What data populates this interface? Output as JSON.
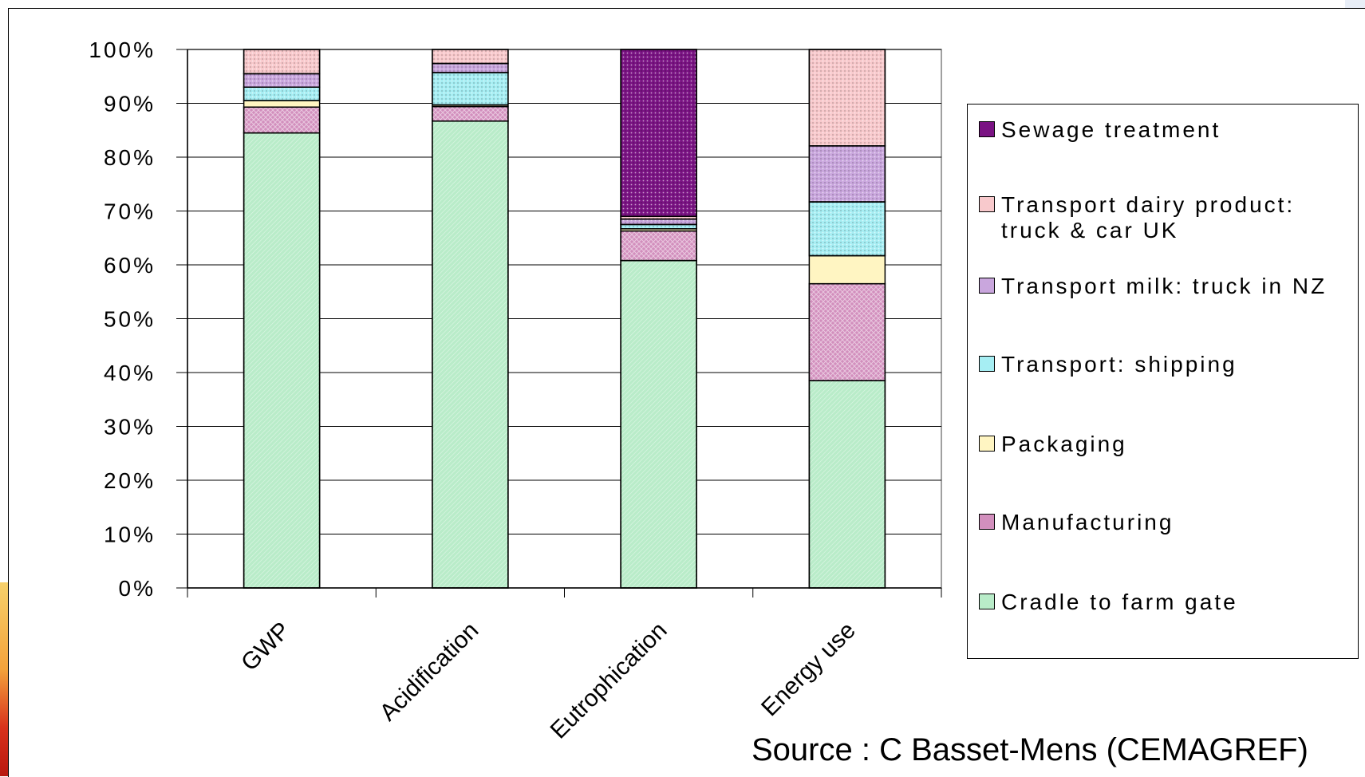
{
  "chart_data": {
    "type": "bar",
    "stacked": true,
    "percent": true,
    "categories": [
      "GWP",
      "Acidification",
      "Eutrophication",
      "Energy use"
    ],
    "series": [
      {
        "name": "Cradle to farm gate",
        "values": [
          84.5,
          86.7,
          60.8,
          38.5
        ],
        "color": "#b9ecc9"
      },
      {
        "name": "Manufacturing",
        "values": [
          4.8,
          2.7,
          5.5,
          18.0
        ],
        "color": "#d28fbd"
      },
      {
        "name": "Packaging",
        "values": [
          1.2,
          0.3,
          0.4,
          5.2
        ],
        "color": "#fff5c2"
      },
      {
        "name": "Transport: shipping",
        "values": [
          2.5,
          6.0,
          0.8,
          10.0
        ],
        "color": "#a6eef3"
      },
      {
        "name": "Transport milk: truck in NZ",
        "values": [
          2.5,
          1.7,
          1.0,
          10.4
        ],
        "color": "#c9a6dd"
      },
      {
        "name": "Transport dairy product:\ntruck & car UK",
        "values": [
          4.5,
          2.6,
          0.5,
          17.9
        ],
        "color": "#f8c9cc"
      },
      {
        "name": "Sewage treatment",
        "values": [
          0,
          0,
          31.0,
          0
        ],
        "color": "#7a1383"
      }
    ],
    "yticks": [
      "0%",
      "10%",
      "20%",
      "30%",
      "40%",
      "50%",
      "60%",
      "70%",
      "80%",
      "90%",
      "100%"
    ],
    "ylim": [
      0,
      100
    ],
    "grid": true,
    "legend_position": "right",
    "legend_order": [
      "Sewage treatment",
      "Transport dairy product:\ntruck & car UK",
      "Transport milk: truck in NZ",
      "Transport: shipping",
      "Packaging",
      "Manufacturing",
      "Cradle to farm gate"
    ]
  },
  "source_text": "Source : C Basset-Mens (CEMAGREF)"
}
